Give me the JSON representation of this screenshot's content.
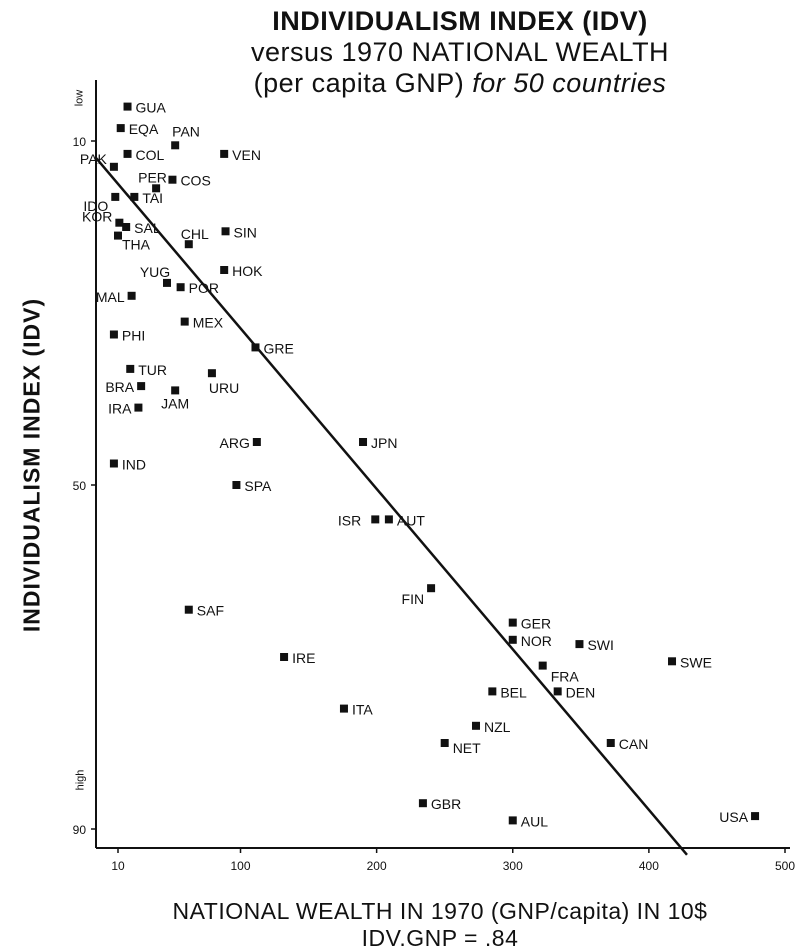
{
  "chart_data": {
    "type": "scatter",
    "title": "INDIVIDUALISM  INDEX (IDV)",
    "subtitle_line2": "versus 1970 NATIONAL WEALTH",
    "subtitle_line3_main": "(per capita GNP)",
    "subtitle_line3_italic": "for 50 countries",
    "xlabel": "NATIONAL  WEALTH  IN  1970  (GNP/capita)  IN  10$",
    "ylabel": "INDIVIDUALISM  INDEX  (IDV)",
    "annotation": "IDV.GNP  =  .84",
    "y_low_label": "low",
    "y_high_label": "high",
    "xlim": [
      6,
      500
    ],
    "x_ticks": [
      10,
      100,
      200,
      300,
      400,
      500
    ],
    "x_tick_labels": [
      "10",
      "100",
      "200",
      "300",
      "400",
      "500"
    ],
    "ylim": [
      90,
      5
    ],
    "y_ticks": [
      10,
      50,
      90
    ],
    "y_tick_labels": [
      "10",
      "50",
      "90"
    ],
    "grid": false,
    "legend": "none",
    "trend_line": {
      "x": [
        -6,
        428
      ],
      "y": [
        12,
        93
      ]
    },
    "points": [
      {
        "label": "GUA",
        "x": 17,
        "y": 6
      },
      {
        "label": "EQA",
        "x": 12,
        "y": 8.5
      },
      {
        "label": "PAN",
        "x": 52,
        "y": 10.5
      },
      {
        "label": "COL",
        "x": 17,
        "y": 11.5
      },
      {
        "label": "VEN",
        "x": 88,
        "y": 11.5
      },
      {
        "label": "PAK",
        "x": 7,
        "y": 13
      },
      {
        "label": "PER",
        "x": 38,
        "y": 15.5
      },
      {
        "label": "COS",
        "x": 50,
        "y": 14.5
      },
      {
        "label": "IDO",
        "x": 8,
        "y": 16.5
      },
      {
        "label": "TAI",
        "x": 22,
        "y": 16.5
      },
      {
        "label": "KOR",
        "x": 11,
        "y": 19.5
      },
      {
        "label": "SAL",
        "x": 16,
        "y": 20
      },
      {
        "label": "THA",
        "x": 10,
        "y": 21
      },
      {
        "label": "CHL",
        "x": 62,
        "y": 22
      },
      {
        "label": "SIN",
        "x": 89,
        "y": 20.5
      },
      {
        "label": "YUG",
        "x": 46,
        "y": 26.5
      },
      {
        "label": "HOK",
        "x": 88,
        "y": 25
      },
      {
        "label": "POR",
        "x": 56,
        "y": 27
      },
      {
        "label": "MAL",
        "x": 20,
        "y": 28
      },
      {
        "label": "MEX",
        "x": 59,
        "y": 31
      },
      {
        "label": "PHI",
        "x": 7,
        "y": 32.5
      },
      {
        "label": "GRE",
        "x": 111,
        "y": 34
      },
      {
        "label": "TUR",
        "x": 19,
        "y": 36.5
      },
      {
        "label": "URU",
        "x": 79,
        "y": 37
      },
      {
        "label": "BRA",
        "x": 27,
        "y": 38.5
      },
      {
        "label": "JAM",
        "x": 52,
        "y": 39
      },
      {
        "label": "IRA",
        "x": 25,
        "y": 41
      },
      {
        "label": "ARG",
        "x": 112,
        "y": 45
      },
      {
        "label": "JPN",
        "x": 190,
        "y": 45
      },
      {
        "label": "IND",
        "x": 7,
        "y": 47.5
      },
      {
        "label": "SPA",
        "x": 97,
        "y": 50
      },
      {
        "label": "ISR",
        "x": 199,
        "y": 54
      },
      {
        "label": "AUT",
        "x": 209,
        "y": 54
      },
      {
        "label": "FIN",
        "x": 240,
        "y": 62
      },
      {
        "label": "SAF",
        "x": 62,
        "y": 64.5
      },
      {
        "label": "GER",
        "x": 300,
        "y": 66
      },
      {
        "label": "NOR",
        "x": 300,
        "y": 68
      },
      {
        "label": "SWI",
        "x": 349,
        "y": 68.5
      },
      {
        "label": "IRE",
        "x": 132,
        "y": 70
      },
      {
        "label": "SWE",
        "x": 417,
        "y": 70.5
      },
      {
        "label": "FRA",
        "x": 322,
        "y": 71
      },
      {
        "label": "BEL",
        "x": 285,
        "y": 74
      },
      {
        "label": "DEN",
        "x": 333,
        "y": 74
      },
      {
        "label": "ITA",
        "x": 176,
        "y": 76
      },
      {
        "label": "NZL",
        "x": 273,
        "y": 78
      },
      {
        "label": "NET",
        "x": 250,
        "y": 80
      },
      {
        "label": "CAN",
        "x": 372,
        "y": 80
      },
      {
        "label": "GBR",
        "x": 234,
        "y": 87
      },
      {
        "label": "AUL",
        "x": 300,
        "y": 89
      },
      {
        "label": "USA",
        "x": 478,
        "y": 88.5
      }
    ]
  }
}
